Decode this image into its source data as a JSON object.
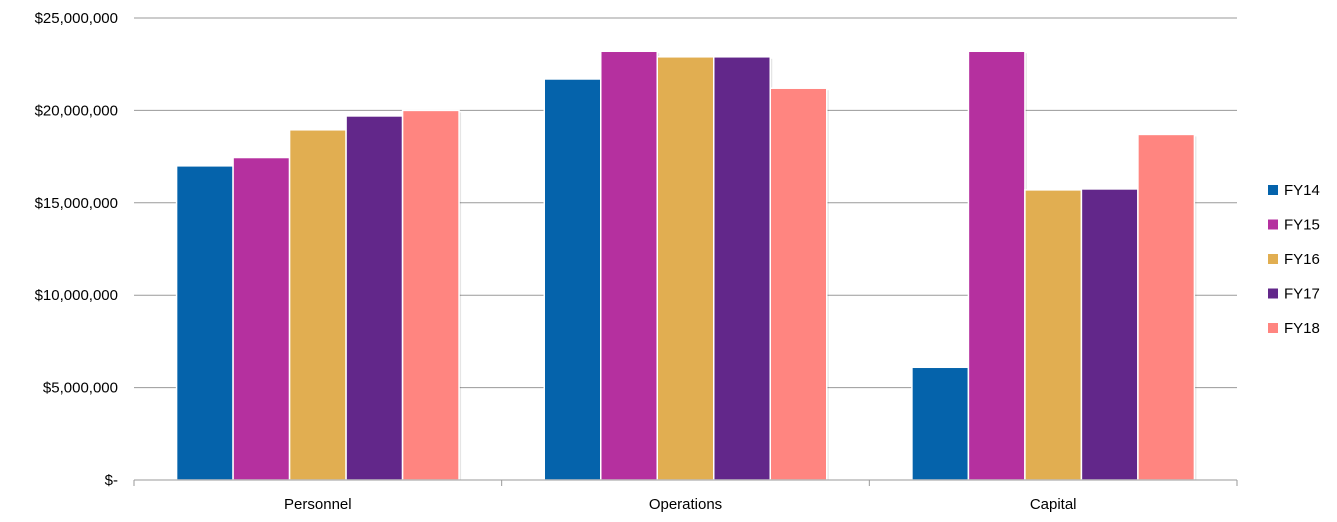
{
  "chart_data": {
    "type": "bar",
    "categories": [
      "Personnel",
      "Operations",
      "Capital"
    ],
    "series": [
      {
        "name": "FY14",
        "color": "#0563AB",
        "values": [
          17000000,
          21700000,
          6100000
        ]
      },
      {
        "name": "FY15",
        "color": "#B5309F",
        "values": [
          17450000,
          23200000,
          23200000
        ]
      },
      {
        "name": "FY16",
        "color": "#E1AE51",
        "values": [
          18950000,
          22900000,
          15700000
        ]
      },
      {
        "name": "FY17",
        "color": "#62278A",
        "values": [
          19700000,
          22900000,
          15750000
        ]
      },
      {
        "name": "FY18",
        "color": "#FF8580",
        "values": [
          20000000,
          21200000,
          18700000
        ]
      }
    ],
    "ylim": [
      0,
      25000000
    ],
    "yticks": [
      0,
      5000000,
      10000000,
      15000000,
      20000000,
      25000000
    ],
    "ytick_labels": [
      "$-",
      "$5,000,000",
      "$10,000,000",
      "$15,000,000",
      "$20,000,000",
      "$25,000,000"
    ],
    "title": "",
    "xlabel": "",
    "ylabel": "",
    "grid": true,
    "legend_position": "right"
  }
}
